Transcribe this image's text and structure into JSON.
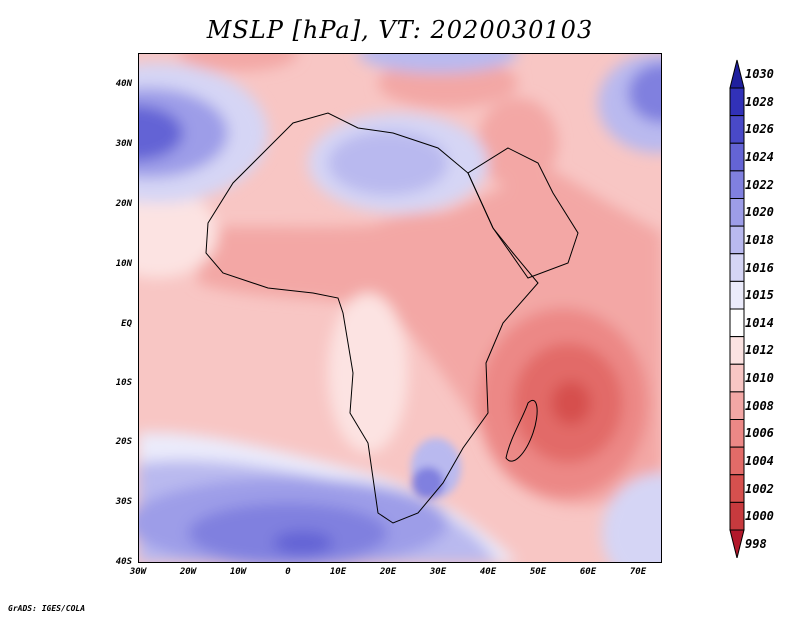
{
  "title": "MSLP [hPa], VT: 2020030103",
  "credit": "GrADS: IGES/COLA",
  "map": {
    "variable": "Mean sea level pressure",
    "units": "hPa",
    "valid_time": "2020030103",
    "lon_range": [
      -30,
      75
    ],
    "lat_range": [
      -40,
      45
    ],
    "features": {
      "low_center": "Mozambique Channel / east of Madagascar",
      "high_centers": [
        "North Atlantic",
        "South Atlantic",
        "Mediterranean / North Africa"
      ]
    }
  },
  "axes": {
    "lat_labels": [
      "40N",
      "30N",
      "20N",
      "10N",
      "EQ",
      "10S",
      "20S",
      "30S",
      "40S"
    ],
    "lon_labels": [
      "30W",
      "20W",
      "10W",
      "0",
      "10E",
      "20E",
      "30E",
      "40E",
      "50E",
      "60E",
      "70E"
    ]
  },
  "colorbar": {
    "levels": [
      "998",
      "1000",
      "1002",
      "1004",
      "1006",
      "1008",
      "1010",
      "1012",
      "1014",
      "1015",
      "1016",
      "1018",
      "1020",
      "1022",
      "1024",
      "1026",
      "1028",
      "1030"
    ],
    "colors": [
      "#b2182b",
      "#c73a3e",
      "#d6504e",
      "#e26b68",
      "#ec8886",
      "#f3a7a5",
      "#f8c6c4",
      "#fce3e2",
      "#ffffff",
      "#ebebfb",
      "#d5d5f5",
      "#b9b9ef",
      "#9d9de8",
      "#8080df",
      "#6464d5",
      "#4949c8",
      "#3131b8",
      "#1f1f9e"
    ]
  }
}
